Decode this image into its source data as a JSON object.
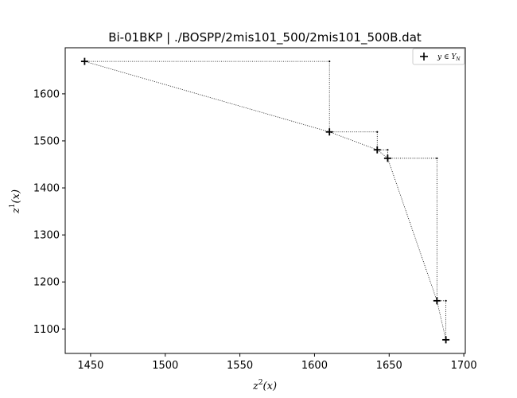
{
  "chart_data": {
    "type": "scatter",
    "title": "Bi-01BKP | ./BOSPP/2mis101_500/2mis101_500B.dat",
    "xlabel": {
      "base": "z",
      "sup": "2",
      "arg": "(x)"
    },
    "ylabel": {
      "base": "z",
      "sup": "1",
      "arg": "(x)"
    },
    "xlim": [
      1433,
      1701
    ],
    "ylim": [
      1048,
      1698
    ],
    "xticks": [
      1450,
      1500,
      1550,
      1600,
      1650,
      1700
    ],
    "yticks": [
      1100,
      1200,
      1300,
      1400,
      1500,
      1600
    ],
    "grid": false,
    "legend": {
      "position": "top-right",
      "entries": [
        "y ∈ Y_N"
      ]
    },
    "series": [
      {
        "name": "y ∈ Y_N",
        "marker": "plus",
        "color": "#000000",
        "points": [
          {
            "x": 1446,
            "y": 1669
          },
          {
            "x": 1610,
            "y": 1519
          },
          {
            "x": 1642,
            "y": 1481
          },
          {
            "x": 1649,
            "y": 1463
          },
          {
            "x": 1682,
            "y": 1160
          },
          {
            "x": 1688,
            "y": 1077
          }
        ]
      }
    ],
    "staircase_corners": [
      {
        "x": 1610,
        "y": 1669
      },
      {
        "x": 1642,
        "y": 1519
      },
      {
        "x": 1649,
        "y": 1481
      },
      {
        "x": 1682,
        "y": 1463
      },
      {
        "x": 1688,
        "y": 1160
      }
    ]
  }
}
